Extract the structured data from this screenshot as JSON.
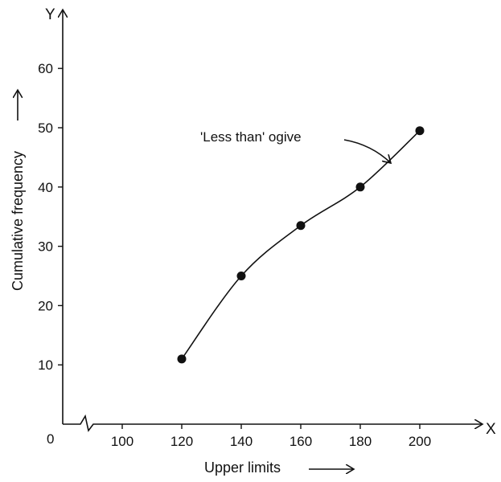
{
  "chart_data": {
    "type": "line",
    "x": [
      120,
      140,
      160,
      180,
      200
    ],
    "y": [
      11,
      25,
      33.5,
      40,
      49.5
    ],
    "xlabel": "Upper limits",
    "ylabel": "Cumulative frequency",
    "x_axis_letter": "X",
    "y_axis_letter": "Y",
    "origin_label": "0",
    "x_ticks": [
      100,
      120,
      140,
      160,
      180,
      200
    ],
    "y_ticks": [
      10,
      20,
      30,
      40,
      50,
      60
    ],
    "xlim": [
      80,
      220
    ],
    "ylim": [
      0,
      65
    ],
    "x_axis_break": true,
    "grid": false,
    "annotation": "'Less than' ogive"
  }
}
